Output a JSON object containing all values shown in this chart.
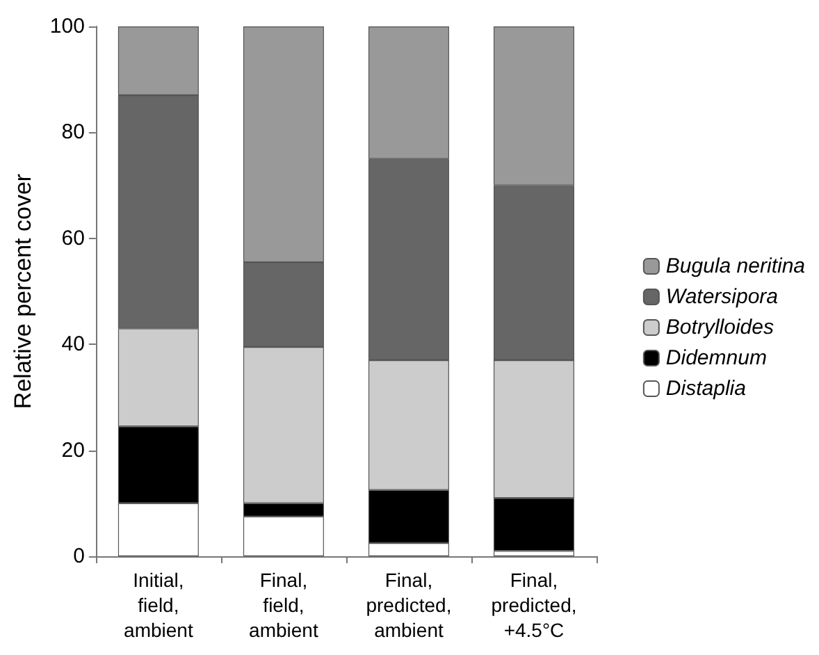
{
  "chart_data": {
    "type": "bar",
    "stacked": true,
    "ylabel": "Relative percent cover",
    "categories": [
      "Initial,\nfield,\nambient",
      "Final,\nfield,\nambient",
      "Final,\npredicted,\nambient",
      "Final,\npredicted,\n+4.5°C"
    ],
    "series": [
      {
        "name": "Distaplia",
        "color": "#ffffff",
        "values": [
          10,
          7.5,
          2.5,
          1
        ]
      },
      {
        "name": "Didemnum",
        "color": "#000000",
        "values": [
          14.5,
          2.5,
          10,
          10
        ]
      },
      {
        "name": "Botrylloides",
        "color": "#cccccc",
        "values": [
          18.5,
          29.5,
          24.5,
          26
        ]
      },
      {
        "name": "Watersipora",
        "color": "#666666",
        "values": [
          44,
          16,
          38,
          33
        ]
      },
      {
        "name": "Bugula neritina",
        "color": "#999999",
        "values": [
          13,
          44.5,
          25,
          30
        ]
      }
    ],
    "ylim": [
      0,
      100
    ],
    "yticks": [
      0,
      20,
      40,
      60,
      80,
      100
    ],
    "grid": false,
    "legend": "right"
  }
}
